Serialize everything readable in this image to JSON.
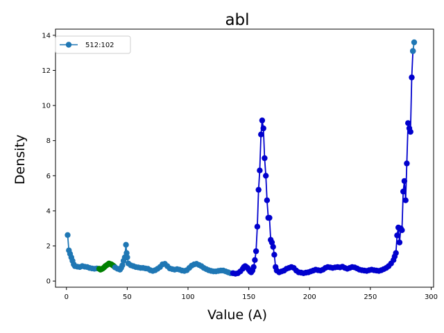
{
  "chart_data": {
    "type": "line",
    "title": "abl",
    "xlabel": "Value (A)",
    "ylabel": "Density",
    "xlim": [
      -9,
      302
    ],
    "ylim": [
      -0.35,
      14.35
    ],
    "xticks": [
      0,
      50,
      100,
      150,
      200,
      250,
      300
    ],
    "yticks": [
      0,
      2,
      4,
      6,
      8,
      10,
      12,
      14
    ],
    "grid": false,
    "legend": {
      "placement": "top-left",
      "entries": [
        "512:102"
      ]
    },
    "series": [
      {
        "name": "512:102",
        "color": "#1f77b4",
        "segments": [
          {
            "color": "#1f77b4",
            "points": [
              [
                1,
                2.62
              ],
              [
                2,
                1.75
              ],
              [
                3,
                1.55
              ],
              [
                4,
                1.35
              ],
              [
                5,
                1.15
              ],
              [
                6,
                0.95
              ],
              [
                7,
                0.85
              ],
              [
                9,
                0.82
              ],
              [
                11,
                0.8
              ],
              [
                13,
                0.85
              ],
              [
                15,
                0.82
              ],
              [
                17,
                0.8
              ],
              [
                19,
                0.75
              ],
              [
                21,
                0.72
              ],
              [
                23,
                0.7
              ],
              [
                25,
                0.72
              ],
              [
                27,
                0.7
              ]
            ]
          },
          {
            "color": "#008000",
            "points": [
              [
                27,
                0.7
              ],
              [
                28,
                0.65
              ],
              [
                29,
                0.68
              ],
              [
                30,
                0.72
              ],
              [
                31,
                0.78
              ],
              [
                32,
                0.85
              ],
              [
                33,
                0.9
              ],
              [
                34,
                0.95
              ],
              [
                35,
                1.0
              ],
              [
                36,
                0.97
              ],
              [
                37,
                0.95
              ],
              [
                38,
                0.9
              ],
              [
                39,
                0.85
              ],
              [
                40,
                0.78
              ]
            ]
          },
          {
            "color": "#1f77b4",
            "points": [
              [
                40,
                0.78
              ],
              [
                42,
                0.7
              ],
              [
                44,
                0.65
              ],
              [
                45,
                0.75
              ],
              [
                46,
                0.9
              ],
              [
                47,
                1.15
              ],
              [
                48,
                1.35
              ],
              [
                49,
                2.07
              ],
              [
                49.5,
                1.6
              ],
              [
                50,
                1.35
              ],
              [
                51,
                1.0
              ],
              [
                53,
                0.9
              ],
              [
                55,
                0.85
              ],
              [
                57,
                0.8
              ],
              [
                59,
                0.78
              ],
              [
                61,
                0.75
              ],
              [
                63,
                0.75
              ],
              [
                65,
                0.72
              ],
              [
                67,
                0.7
              ],
              [
                69,
                0.62
              ],
              [
                71,
                0.58
              ],
              [
                73,
                0.62
              ],
              [
                75,
                0.7
              ],
              [
                77,
                0.8
              ],
              [
                79,
                0.95
              ],
              [
                81,
                0.98
              ],
              [
                83,
                0.85
              ],
              [
                85,
                0.72
              ],
              [
                87,
                0.68
              ],
              [
                89,
                0.65
              ],
              [
                91,
                0.68
              ],
              [
                93,
                0.65
              ],
              [
                95,
                0.6
              ],
              [
                97,
                0.58
              ],
              [
                99,
                0.62
              ],
              [
                101,
                0.75
              ],
              [
                103,
                0.88
              ],
              [
                105,
                0.95
              ],
              [
                107,
                0.98
              ],
              [
                109,
                0.92
              ],
              [
                111,
                0.85
              ],
              [
                113,
                0.75
              ],
              [
                115,
                0.68
              ],
              [
                117,
                0.62
              ],
              [
                119,
                0.58
              ],
              [
                121,
                0.55
              ],
              [
                123,
                0.55
              ],
              [
                125,
                0.58
              ],
              [
                127,
                0.6
              ],
              [
                129,
                0.6
              ],
              [
                131,
                0.55
              ],
              [
                133,
                0.5
              ],
              [
                135,
                0.45
              ],
              [
                137,
                0.45
              ]
            ]
          },
          {
            "color": "#0000cd",
            "points": [
              [
                137,
                0.45
              ],
              [
                139,
                0.42
              ],
              [
                141,
                0.45
              ],
              [
                143,
                0.55
              ],
              [
                145,
                0.7
              ],
              [
                146,
                0.8
              ],
              [
                147,
                0.85
              ],
              [
                148,
                0.8
              ],
              [
                149,
                0.75
              ],
              [
                150,
                0.65
              ],
              [
                151,
                0.55
              ],
              [
                152,
                0.5
              ],
              [
                153,
                0.6
              ],
              [
                154,
                0.8
              ],
              [
                155,
                1.2
              ],
              [
                156,
                1.7
              ],
              [
                157,
                3.1
              ],
              [
                158,
                5.2
              ],
              [
                159,
                6.3
              ],
              [
                160,
                8.35
              ],
              [
                161,
                9.15
              ],
              [
                162,
                8.7
              ],
              [
                163,
                7.0
              ],
              [
                164,
                6.0
              ],
              [
                165,
                4.6
              ],
              [
                166,
                3.6
              ],
              [
                167,
                3.6
              ],
              [
                168,
                2.35
              ],
              [
                169,
                2.2
              ],
              [
                170,
                1.95
              ],
              [
                171,
                1.5
              ],
              [
                172,
                0.8
              ],
              [
                173,
                0.6
              ],
              [
                175,
                0.5
              ],
              [
                177,
                0.55
              ],
              [
                179,
                0.6
              ],
              [
                181,
                0.7
              ],
              [
                183,
                0.75
              ],
              [
                185,
                0.8
              ],
              [
                187,
                0.75
              ],
              [
                189,
                0.6
              ],
              [
                191,
                0.5
              ],
              [
                193,
                0.48
              ],
              [
                195,
                0.45
              ],
              [
                197,
                0.48
              ],
              [
                199,
                0.5
              ],
              [
                201,
                0.55
              ],
              [
                203,
                0.6
              ],
              [
                205,
                0.65
              ],
              [
                207,
                0.62
              ],
              [
                209,
                0.6
              ],
              [
                211,
                0.65
              ],
              [
                213,
                0.75
              ],
              [
                215,
                0.8
              ],
              [
                217,
                0.78
              ],
              [
                219,
                0.75
              ],
              [
                221,
                0.78
              ],
              [
                223,
                0.8
              ],
              [
                225,
                0.78
              ],
              [
                227,
                0.82
              ],
              [
                229,
                0.75
              ],
              [
                231,
                0.7
              ],
              [
                233,
                0.75
              ],
              [
                235,
                0.8
              ],
              [
                237,
                0.78
              ],
              [
                239,
                0.72
              ],
              [
                241,
                0.65
              ],
              [
                243,
                0.62
              ],
              [
                245,
                0.6
              ],
              [
                247,
                0.58
              ],
              [
                249,
                0.62
              ],
              [
                251,
                0.65
              ],
              [
                253,
                0.62
              ],
              [
                255,
                0.6
              ],
              [
                257,
                0.58
              ],
              [
                259,
                0.62
              ],
              [
                261,
                0.68
              ],
              [
                263,
                0.75
              ],
              [
                265,
                0.85
              ],
              [
                267,
                1.0
              ],
              [
                269,
                1.2
              ],
              [
                270,
                1.4
              ],
              [
                271,
                1.6
              ],
              [
                272,
                2.6
              ],
              [
                273,
                3.05
              ],
              [
                274,
                2.2
              ],
              [
                275,
                3.0
              ],
              [
                276,
                2.9
              ],
              [
                277,
                5.1
              ],
              [
                278,
                5.7
              ],
              [
                279,
                4.6
              ],
              [
                280,
                6.7
              ],
              [
                281,
                9.0
              ],
              [
                282,
                8.7
              ],
              [
                283,
                8.5
              ],
              [
                284,
                11.6
              ],
              [
                285,
                13.1
              ]
            ]
          },
          {
            "color": "#1f77b4",
            "points": [
              [
                285,
                13.1
              ],
              [
                286,
                13.6
              ]
            ]
          }
        ]
      }
    ]
  }
}
